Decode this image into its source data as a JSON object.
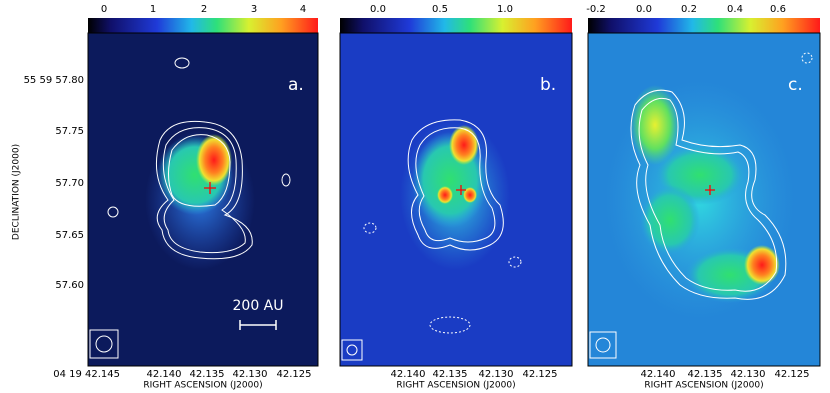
{
  "panels": [
    {
      "label": "a.",
      "colorbar_ticks": [
        "0",
        "1",
        "2",
        "3",
        "4"
      ],
      "x_ticks": [
        "04 19 42.145",
        "42.140",
        "42.135",
        "42.130",
        "42.125"
      ],
      "x_axis_label": "RIGHT ASCENSION (J2000)",
      "scale_bar": "200 AU"
    },
    {
      "label": "b.",
      "colorbar_ticks": [
        "0.0",
        "0.5",
        "1.0"
      ],
      "x_ticks": [
        "42.140",
        "42.135",
        "42.130",
        "42.125"
      ],
      "x_axis_label": "RIGHT ASCENSION (J2000)"
    },
    {
      "label": "c.",
      "colorbar_ticks": [
        "-0.2",
        "0.0",
        "0.2",
        "0.4",
        "0.6"
      ],
      "x_ticks": [
        "42.140",
        "42.135",
        "42.130",
        "42.125"
      ],
      "x_axis_label": "RIGHT ASCENSION (J2000)"
    }
  ],
  "y_axis_label": "DECLINATION (J2000)",
  "y_ticks": [
    "55 59 57.80",
    "57.75",
    "57.70",
    "57.65",
    "57.60"
  ]
}
